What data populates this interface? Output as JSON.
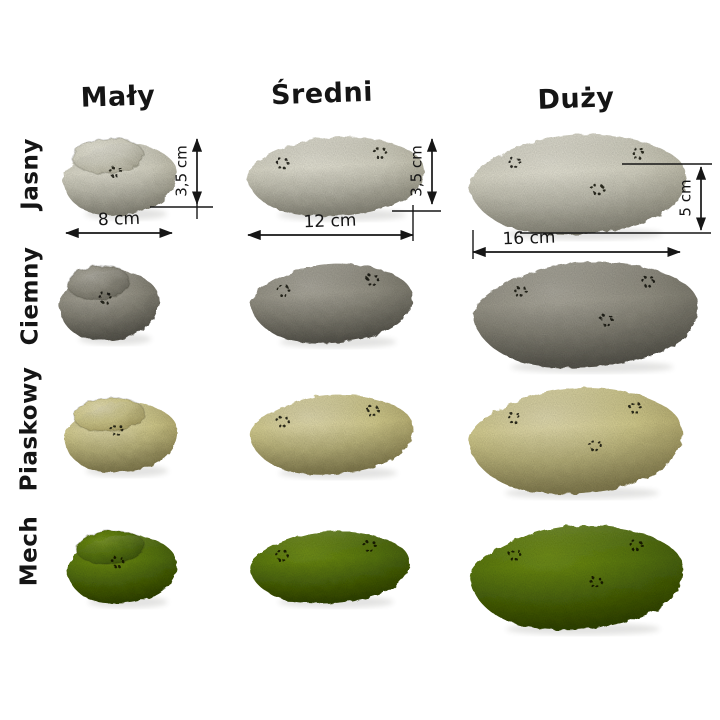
{
  "page": {
    "background_color": "#ffffff",
    "unit": "cm"
  },
  "size_columns": [
    {
      "id": "maly",
      "label": "Mały",
      "dimensions": {
        "width": "8 cm",
        "height": "3,5 cm"
      }
    },
    {
      "id": "sredni",
      "label": "Średni",
      "dimensions": {
        "width": "12 cm",
        "height": "3,5 cm"
      }
    },
    {
      "id": "duzy",
      "label": "Duży",
      "dimensions": {
        "width": "16 cm",
        "height": "5 cm"
      }
    }
  ],
  "color_rows": [
    {
      "id": "jasny",
      "label": "Jasny",
      "colors": {
        "highlight": "#f3f1e3",
        "base": "#e2e0cf",
        "shadow": "#b3b09c"
      }
    },
    {
      "id": "ciemny",
      "label": "Ciemny",
      "colors": {
        "highlight": "#b9b6aa",
        "base": "#9d9a8c",
        "shadow": "#6b695e"
      }
    },
    {
      "id": "piaskowy",
      "label": "Piaskowy",
      "colors": {
        "highlight": "#f1eabc",
        "base": "#ded694",
        "shadow": "#a79c60"
      }
    },
    {
      "id": "mech",
      "label": "Mech",
      "colors": {
        "highlight": "#79991c",
        "base": "#5e7d15",
        "shadow": "#3c5310"
      }
    }
  ],
  "annotation_color": "#161616"
}
